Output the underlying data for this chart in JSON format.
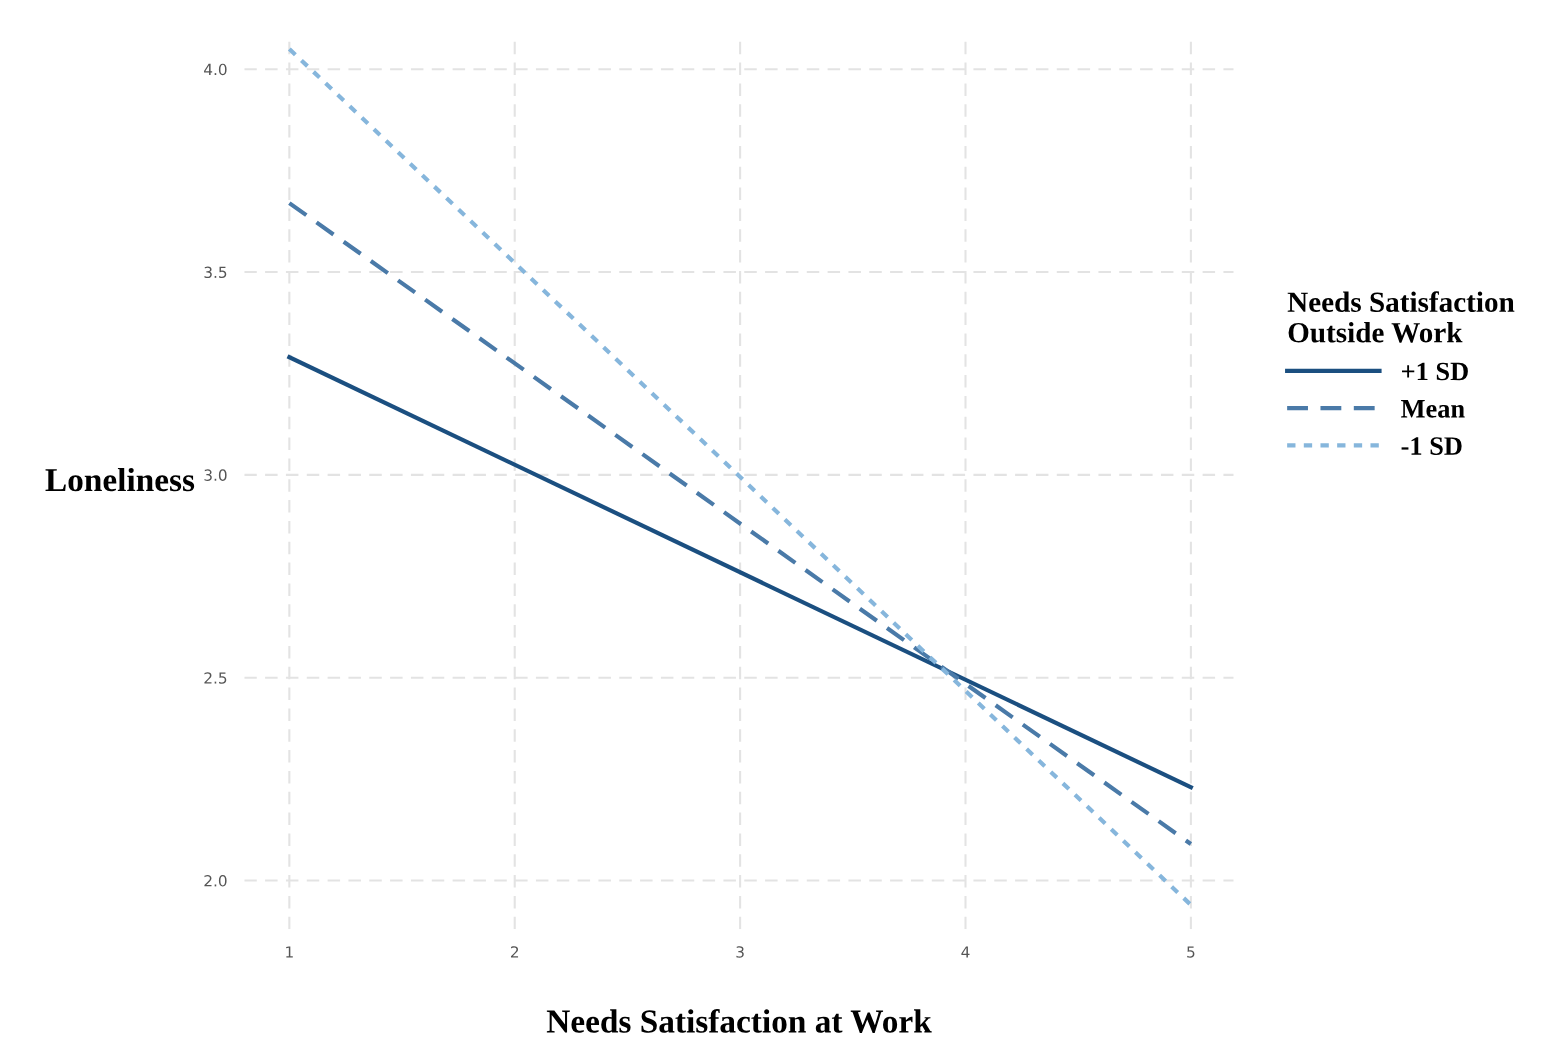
{
  "chart_data": {
    "type": "line",
    "xlabel": "Needs Satisfaction at Work",
    "ylabel": "Loneliness",
    "legend_title": "Needs Satisfaction\nOutside Work",
    "x": [
      1,
      5
    ],
    "series": [
      {
        "name": "+1 SD",
        "color": "#1b4f80",
        "line_style": "solid",
        "values": [
          3.29,
          2.23
        ]
      },
      {
        "name": "Mean",
        "color": "#4a7aa8",
        "line_style": "dashed",
        "values": [
          3.67,
          2.09
        ]
      },
      {
        "name": "-1 SD",
        "color": "#86b6dc",
        "line_style": "dotted",
        "values": [
          4.05,
          1.94
        ]
      }
    ],
    "xlim": [
      0.8,
      5.19
    ],
    "ylim": [
      1.88,
      4.08
    ],
    "xticks": [
      1,
      2,
      3,
      4,
      5
    ],
    "yticks": [
      {
        "value": 2.0,
        "label": "2.0"
      },
      {
        "value": 2.5,
        "label": "2.5"
      },
      {
        "value": 3.0,
        "label": "3.0"
      },
      {
        "value": 3.5,
        "label": "3.5"
      },
      {
        "value": 4.0,
        "label": "4.0"
      }
    ],
    "grid": true,
    "legend": "right",
    "marker": "none"
  }
}
